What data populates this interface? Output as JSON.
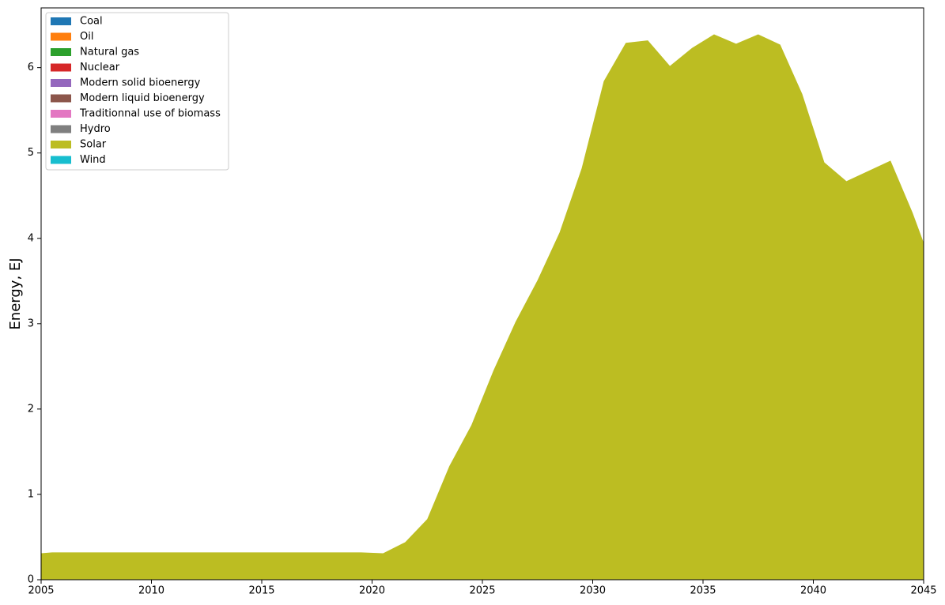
{
  "chart_data": {
    "type": "stacked_area",
    "y_label": "Energy, EJ",
    "x": [
      2005,
      2005.5,
      2006.5,
      2007.5,
      2008.5,
      2009.5,
      2010.5,
      2011.5,
      2012.5,
      2013.5,
      2014.5,
      2015.5,
      2016.5,
      2017.5,
      2018.5,
      2019.5,
      2020.5,
      2021.5,
      2022.5,
      2023.5,
      2024.5,
      2025.5,
      2026.5,
      2027.5,
      2028.5,
      2029.5,
      2030.5,
      2031.5,
      2032.5,
      2033.5,
      2034.5,
      2035.5,
      2036.5,
      2037.5,
      2038.5,
      2039.5,
      2040.5,
      2041.5,
      2042.5,
      2043.5,
      2044.5,
      2045
    ],
    "series": [
      {
        "name": "Coal",
        "color": "#1f77b4",
        "values": [
          0,
          0,
          0,
          0,
          0,
          0,
          0,
          0,
          0,
          0,
          0,
          0,
          0,
          0,
          0,
          0,
          0,
          0,
          0,
          0,
          0,
          0,
          0,
          0,
          0,
          0,
          0,
          0,
          0,
          0,
          0,
          0,
          0,
          0,
          0,
          0,
          0,
          0,
          0,
          0,
          0,
          0
        ]
      },
      {
        "name": "Oil",
        "color": "#ff7f0e",
        "values": [
          0,
          0,
          0,
          0,
          0,
          0,
          0,
          0,
          0,
          0,
          0,
          0,
          0,
          0,
          0,
          0,
          0,
          0,
          0,
          0,
          0,
          0,
          0,
          0,
          0,
          0,
          0,
          0,
          0,
          0,
          0,
          0,
          0,
          0,
          0,
          0,
          0,
          0,
          0,
          0,
          0,
          0
        ]
      },
      {
        "name": "Natural gas",
        "color": "#2ca02c",
        "values": [
          0,
          0,
          0,
          0,
          0,
          0,
          0,
          0,
          0,
          0,
          0,
          0,
          0,
          0,
          0,
          0,
          0,
          0,
          0,
          0,
          0,
          0,
          0,
          0,
          0,
          0,
          0,
          0,
          0,
          0,
          0,
          0,
          0,
          0,
          0,
          0,
          0,
          0,
          0,
          0,
          0,
          0
        ]
      },
      {
        "name": "Nuclear",
        "color": "#d62728",
        "values": [
          0,
          0,
          0,
          0,
          0,
          0,
          0,
          0,
          0,
          0,
          0,
          0,
          0,
          0,
          0,
          0,
          0,
          0,
          0,
          0,
          0,
          0,
          0,
          0,
          0,
          0,
          0,
          0,
          0,
          0,
          0,
          0,
          0,
          0,
          0,
          0,
          0,
          0,
          0,
          0,
          0,
          0
        ]
      },
      {
        "name": "Modern solid bioenergy",
        "color": "#9467bd",
        "values": [
          0,
          0,
          0,
          0,
          0,
          0,
          0,
          0,
          0,
          0,
          0,
          0,
          0,
          0,
          0,
          0,
          0,
          0,
          0,
          0,
          0,
          0,
          0,
          0,
          0,
          0,
          0,
          0,
          0,
          0,
          0,
          0,
          0,
          0,
          0,
          0,
          0,
          0,
          0,
          0,
          0,
          0
        ]
      },
      {
        "name": "Modern liquid bioenergy",
        "color": "#8c564b",
        "values": [
          0,
          0,
          0,
          0,
          0,
          0,
          0,
          0,
          0,
          0,
          0,
          0,
          0,
          0,
          0,
          0,
          0,
          0,
          0,
          0,
          0,
          0,
          0,
          0,
          0,
          0,
          0,
          0,
          0,
          0,
          0,
          0,
          0,
          0,
          0,
          0,
          0,
          0,
          0,
          0,
          0,
          0
        ]
      },
      {
        "name": "Traditionnal use of biomass",
        "color": "#e377c2",
        "values": [
          0,
          0,
          0,
          0,
          0,
          0,
          0,
          0,
          0,
          0,
          0,
          0,
          0,
          0,
          0,
          0,
          0,
          0,
          0,
          0,
          0,
          0,
          0,
          0,
          0,
          0,
          0,
          0,
          0,
          0,
          0,
          0,
          0,
          0,
          0,
          0,
          0,
          0,
          0,
          0,
          0,
          0
        ]
      },
      {
        "name": "Hydro",
        "color": "#7f7f7f",
        "values": [
          0,
          0,
          0,
          0,
          0,
          0,
          0,
          0,
          0,
          0,
          0,
          0,
          0,
          0,
          0,
          0,
          0,
          0,
          0,
          0,
          0,
          0,
          0,
          0,
          0,
          0,
          0,
          0,
          0,
          0,
          0,
          0,
          0,
          0,
          0,
          0,
          0,
          0,
          0,
          0,
          0,
          0
        ]
      },
      {
        "name": "Solar",
        "color": "#bcbd22",
        "values": [
          0.31,
          0.32,
          0.32,
          0.32,
          0.32,
          0.32,
          0.32,
          0.32,
          0.32,
          0.32,
          0.32,
          0.32,
          0.32,
          0.32,
          0.32,
          0.32,
          0.31,
          0.44,
          0.71,
          1.33,
          1.81,
          2.45,
          3.02,
          3.51,
          4.07,
          4.82,
          5.84,
          6.29,
          6.32,
          6.02,
          6.23,
          6.39,
          6.28,
          6.39,
          6.27,
          5.69,
          4.89,
          4.67,
          4.79,
          4.91,
          4.3,
          3.95
        ]
      },
      {
        "name": "Wind",
        "color": "#17becf",
        "values": [
          0,
          0,
          0,
          0,
          0,
          0,
          0,
          0,
          0,
          0,
          0,
          0,
          0,
          0,
          0,
          0,
          0,
          0,
          0,
          0,
          0,
          0,
          0,
          0,
          0,
          0,
          0,
          0,
          0,
          0,
          0,
          0,
          0,
          0,
          0,
          0,
          0,
          0,
          0,
          0,
          0,
          0
        ]
      }
    ],
    "xlim": [
      2005,
      2045
    ],
    "xticks": [
      2005,
      2010,
      2015,
      2020,
      2025,
      2030,
      2035,
      2040,
      2045
    ],
    "ylim": [
      0,
      6.7
    ],
    "yticks": [
      0,
      1,
      2,
      3,
      4,
      5,
      6
    ],
    "legend": "upper left"
  }
}
